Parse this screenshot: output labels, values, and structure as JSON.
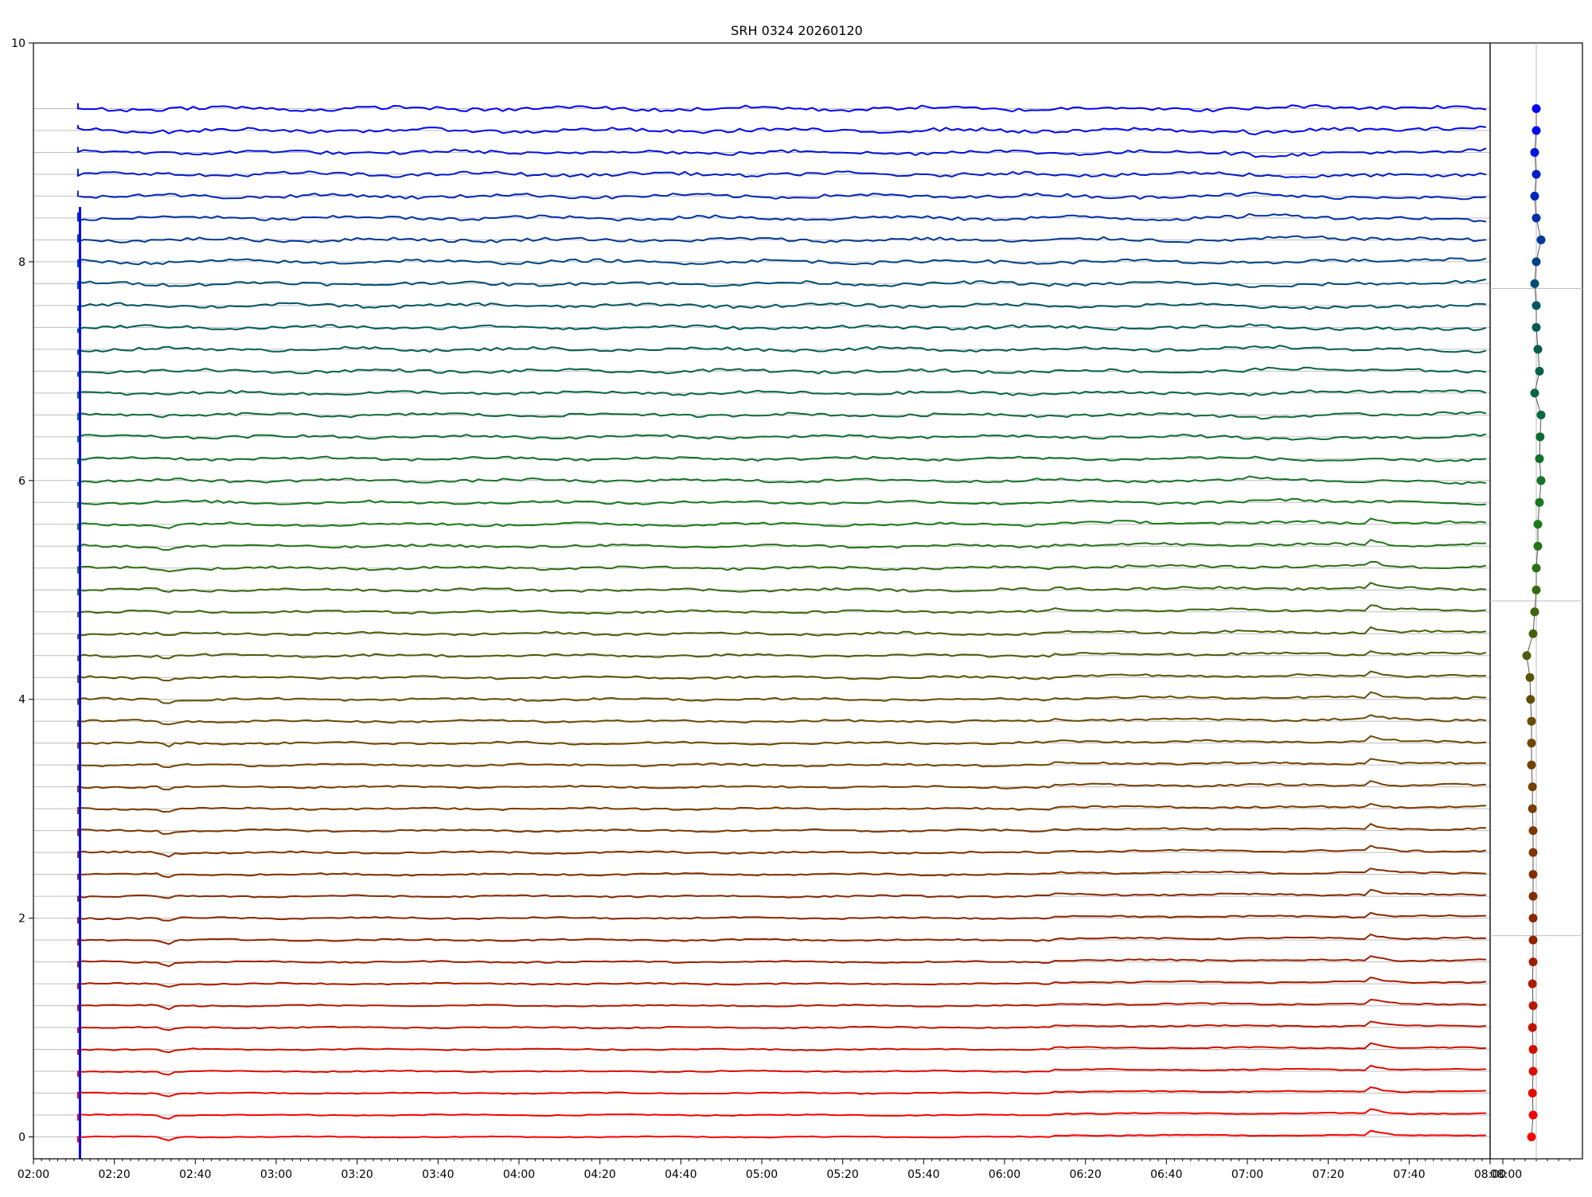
{
  "chart_data": {
    "type": "line",
    "title": "SRH 0324 20260120",
    "xlabel": "",
    "ylabel": "",
    "x_ticks": [
      "02:00",
      "02:20",
      "02:40",
      "03:00",
      "03:20",
      "03:40",
      "04:00",
      "04:20",
      "04:40",
      "05:00",
      "05:20",
      "05:40",
      "06:00",
      "06:20",
      "06:40",
      "07:00",
      "07:20",
      "07:40",
      "08:00"
    ],
    "x_range": [
      "02:00",
      "08:00"
    ],
    "y_ticks": [
      0,
      2,
      4,
      6,
      8,
      10
    ],
    "ylim": [
      -0.2,
      10
    ],
    "grid": "horizontal at each trace baseline",
    "series_count": 48,
    "baseline_step": 0.2,
    "color_gradient": [
      "#ff0000",
      "#8b2500",
      "#6b4a00",
      "#1a7a1a",
      "#005a5a",
      "#0000ff"
    ],
    "event_features": [
      {
        "time": "02:33",
        "description": "dip on lower traces"
      },
      {
        "time": "06:11",
        "description": "step on lower traces"
      },
      {
        "time": "07:31",
        "description": "bump on lower traces"
      }
    ],
    "side_panel": {
      "x_ticks": [
        "08:00"
      ],
      "points": [
        {
          "index": 0,
          "x": -0.15
        },
        {
          "index": 1,
          "x": -0.1
        },
        {
          "index": 2,
          "x": -0.12
        },
        {
          "index": 3,
          "x": -0.1
        },
        {
          "index": 4,
          "x": -0.1
        },
        {
          "index": 5,
          "x": -0.12
        },
        {
          "index": 6,
          "x": -0.1
        },
        {
          "index": 7,
          "x": -0.12
        },
        {
          "index": 8,
          "x": -0.1
        },
        {
          "index": 9,
          "x": -0.1
        },
        {
          "index": 10,
          "x": -0.1
        },
        {
          "index": 11,
          "x": -0.1
        },
        {
          "index": 12,
          "x": -0.1
        },
        {
          "index": 13,
          "x": -0.1
        },
        {
          "index": 14,
          "x": -0.1
        },
        {
          "index": 15,
          "x": -0.12
        },
        {
          "index": 16,
          "x": -0.12
        },
        {
          "index": 17,
          "x": -0.15
        },
        {
          "index": 18,
          "x": -0.15
        },
        {
          "index": 19,
          "x": -0.15
        },
        {
          "index": 20,
          "x": -0.18
        },
        {
          "index": 21,
          "x": -0.2
        },
        {
          "index": 22,
          "x": -0.3
        },
        {
          "index": 23,
          "x": -0.1
        },
        {
          "index": 24,
          "x": -0.05
        },
        {
          "index": 25,
          "x": 0.0
        },
        {
          "index": 26,
          "x": 0.0
        },
        {
          "index": 27,
          "x": 0.05
        },
        {
          "index": 28,
          "x": 0.05
        },
        {
          "index": 29,
          "x": 0.1
        },
        {
          "index": 30,
          "x": 0.15
        },
        {
          "index": 31,
          "x": 0.1
        },
        {
          "index": 32,
          "x": 0.12
        },
        {
          "index": 33,
          "x": 0.15
        },
        {
          "index": 34,
          "x": -0.05
        },
        {
          "index": 35,
          "x": 0.1
        },
        {
          "index": 36,
          "x": 0.05
        },
        {
          "index": 37,
          "x": 0.0
        },
        {
          "index": 38,
          "x": 0.0
        },
        {
          "index": 39,
          "x": -0.05
        },
        {
          "index": 40,
          "x": 0.0
        },
        {
          "index": 41,
          "x": 0.15
        },
        {
          "index": 42,
          "x": 0.0
        },
        {
          "index": 43,
          "x": -0.05
        },
        {
          "index": 44,
          "x": 0.0
        },
        {
          "index": 45,
          "x": -0.05
        },
        {
          "index": 46,
          "x": 0.0
        },
        {
          "index": 47,
          "x": 0.0
        }
      ]
    }
  }
}
